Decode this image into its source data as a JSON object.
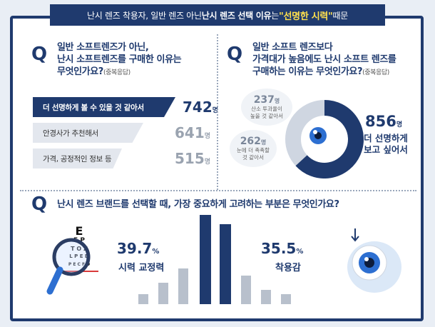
{
  "banner": {
    "part1": "난시 렌즈 착용자, 일반 렌즈 아닌 ",
    "part2": "난시 렌즈 선택 이유",
    "part3": "는 ",
    "part4": "\"선명한 시력\"",
    "part5": " 때문"
  },
  "q_badge": "Q",
  "q1": {
    "line1": "일반 소프트렌즈가 아닌,",
    "line2": "난시 소프트렌즈를 구매한 이유는",
    "line3": "무엇인가요?",
    "note": "(중복응답)"
  },
  "q2": {
    "line1": "일반 소프트 렌즈보다",
    "line2": "가격대가 높음에도 난시 소프트 렌즈를",
    "line3": "구매하는 이유는 무엇인가요?",
    "note": "(중복응답)"
  },
  "q3": {
    "text": "난시 렌즈 브랜드를 선택할 때, 가장 중요하게 고려하는 부분은 무엇인가요?"
  },
  "unit": "명",
  "percent_unit": "%",
  "chart_data": [
    {
      "type": "bar",
      "orientation": "horizontal",
      "categories": [
        "더 선명하게 볼 수 있을 것 같아서",
        "안경사가 추천해서",
        "가격, 공정적인 정보 등"
      ],
      "values": [
        742,
        641,
        515
      ],
      "value_labels": [
        "742",
        "641",
        "515"
      ],
      "unit": "명"
    },
    {
      "type": "pie",
      "categories": [
        "더 선명하게 보고 싶어서",
        "산소 투과율이 높을 것 같아서",
        "눈에 더 촉촉할 것 같아서"
      ],
      "values": [
        856,
        237,
        262
      ],
      "value_labels": [
        "856",
        "237",
        "262"
      ],
      "label_lines": [
        [
          "더 선명하게",
          "보고 싶어서"
        ],
        [
          "산소 투과율이",
          "높을 것 같아서"
        ],
        [
          "눈에 더 촉촉할",
          "것 같아서"
        ]
      ],
      "unit": "명"
    },
    {
      "type": "bar",
      "categories": [
        "시력 교정력",
        "착용감"
      ],
      "values": [
        39.7,
        35.5
      ],
      "value_labels": [
        "39.7",
        "35.5"
      ],
      "unit": "%"
    }
  ],
  "eye_chart": {
    "letter_e": "E",
    "line2": "F P",
    "line3": "T O Z",
    "line4": "L P E D",
    "line5": "P E C F D"
  },
  "colors": {
    "navy": "#1f3a6e",
    "gray_bar": "#b8c0cc",
    "light_bar": "#e3e7ee",
    "accent_blue": "#2d6fd1",
    "red_line": "#d93b3b"
  }
}
